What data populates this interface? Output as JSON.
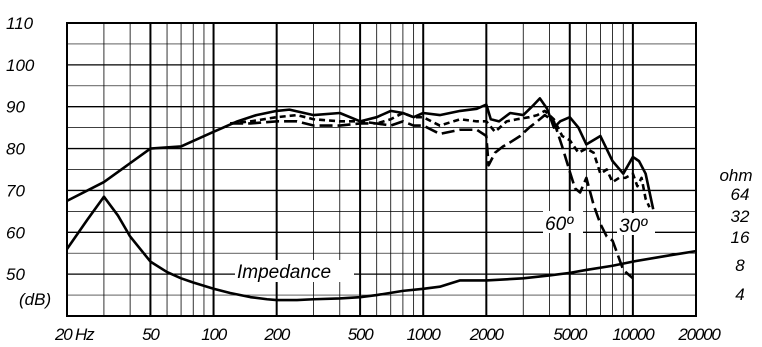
{
  "chart_data": {
    "type": "line",
    "x_scale": "log",
    "xlim": [
      20,
      20000
    ],
    "ylim": [
      40,
      110
    ],
    "grid": true,
    "y_ticks": [
      {
        "value": 110,
        "label": "110"
      },
      {
        "value": 100,
        "label": "100"
      },
      {
        "value": 90,
        "label": "90"
      },
      {
        "value": 80,
        "label": "80"
      },
      {
        "value": 70,
        "label": "70"
      },
      {
        "value": 60,
        "label": "60"
      },
      {
        "value": 50,
        "label": "50"
      }
    ],
    "y_unit_label": "(dB)",
    "x_ticks": [
      {
        "value": 20,
        "label": "20 Hz"
      },
      {
        "value": 50,
        "label": "50"
      },
      {
        "value": 100,
        "label": "100"
      },
      {
        "value": 200,
        "label": "200"
      },
      {
        "value": 500,
        "label": "500"
      },
      {
        "value": 1000,
        "label": "1000"
      },
      {
        "value": 2000,
        "label": "2000"
      },
      {
        "value": 5000,
        "label": "5000"
      },
      {
        "value": 10000,
        "label": "10000"
      },
      {
        "value": 20000,
        "label": "20000"
      }
    ],
    "right_axis": {
      "unit": "ohm",
      "ticks": [
        {
          "value": 64,
          "label": "64"
        },
        {
          "value": 32,
          "label": "32"
        },
        {
          "value": 16,
          "label": "16"
        },
        {
          "value": 8,
          "label": "8"
        },
        {
          "value": 4,
          "label": "4"
        }
      ]
    },
    "series": [
      {
        "style": "solid",
        "x": [
          20,
          30,
          50,
          70,
          100,
          130,
          160,
          200,
          230,
          300,
          400,
          500,
          600,
          700,
          800,
          900,
          1000,
          1200,
          1500,
          1800,
          2000,
          2100,
          2300,
          2600,
          3000,
          3300,
          3600,
          3900,
          4200,
          4500,
          5000,
          5500,
          6000,
          7000,
          8000,
          9000,
          10000,
          10700,
          11500,
          12500
        ],
        "y": [
          67.5,
          72,
          80,
          80.5,
          84,
          86.5,
          88,
          89,
          89.3,
          88,
          88.5,
          86.5,
          87.5,
          89,
          88.5,
          87.5,
          88.5,
          88,
          89,
          89.5,
          90.5,
          87,
          86.5,
          88.5,
          88,
          90,
          92,
          89.5,
          85,
          86.5,
          87.5,
          85,
          81,
          83,
          77,
          74,
          78,
          77,
          74,
          65.5
        ]
      },
      {
        "style": "dashed",
        "annotation": "30º",
        "x": [
          120,
          150,
          200,
          250,
          300,
          400,
          500,
          600,
          700,
          800,
          900,
          1000,
          1200,
          1500,
          1800,
          2000,
          2200,
          2500,
          2800,
          3200,
          3500,
          3800,
          4200,
          4600,
          5000,
          5500,
          6000,
          6500,
          7000,
          7500,
          8000,
          8600,
          9200,
          10000,
          10500,
          11000,
          11500,
          12000
        ],
        "y": [
          86,
          86.5,
          87.5,
          88,
          87,
          86.5,
          86.5,
          86,
          87,
          88.5,
          87.5,
          87.5,
          85.5,
          87,
          86.5,
          86.5,
          84,
          86.5,
          87,
          87.5,
          88,
          89,
          87,
          83,
          82,
          79,
          80,
          79,
          74,
          75,
          72,
          73,
          73,
          74,
          71,
          73,
          68,
          66
        ]
      },
      {
        "style": "long-dashed",
        "annotation": "60º",
        "x": [
          120,
          150,
          200,
          250,
          300,
          400,
          500,
          600,
          700,
          800,
          900,
          1000,
          1200,
          1500,
          1800,
          2000,
          2050,
          2200,
          2400,
          2600,
          2900,
          3200,
          3500,
          3800,
          4200,
          4600,
          5000,
          5300,
          5600,
          6000,
          6500,
          7000,
          7500,
          8000,
          9000,
          10000
        ],
        "y": [
          86,
          86,
          86.5,
          86.5,
          85.5,
          85.5,
          86,
          86,
          85.5,
          86.5,
          85.5,
          85.5,
          83.5,
          84.5,
          84.5,
          83,
          76,
          79,
          80.5,
          81.5,
          83,
          85,
          86.5,
          88,
          86.5,
          80.5,
          74.5,
          70.5,
          69.5,
          73,
          66.5,
          62,
          59,
          58,
          51,
          49
        ]
      },
      {
        "style": "solid",
        "annotation": "Impedance",
        "x": [
          20,
          25,
          30,
          35,
          40,
          50,
          60,
          70,
          80,
          100,
          120,
          150,
          180,
          200,
          250,
          300,
          400,
          500,
          600,
          800,
          1000,
          1200,
          1500,
          2000,
          3000,
          4000,
          5000,
          6000,
          8000,
          10000,
          15000,
          20000
        ],
        "y": [
          56,
          63,
          68.5,
          64,
          59,
          53,
          50.5,
          49,
          48,
          46.5,
          45.5,
          44.5,
          44,
          43.8,
          43.8,
          44,
          44.2,
          44.5,
          45,
          46,
          46.5,
          47,
          48.5,
          48.5,
          49,
          49.7,
          50.3,
          51,
          52,
          53,
          54.5,
          55.5
        ]
      }
    ]
  }
}
